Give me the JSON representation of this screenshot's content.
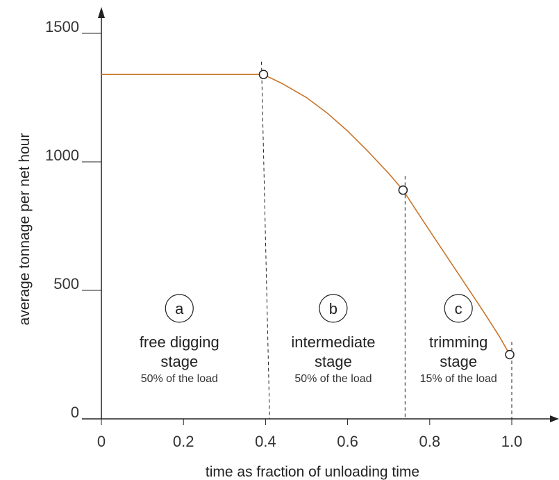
{
  "chart_data": {
    "type": "line",
    "xlabel": "time as fraction of unloading time",
    "ylabel": "average tonnage per net hour",
    "xlim": [
      0,
      1.0
    ],
    "ylim": [
      0,
      1500
    ],
    "x_ticks": [
      "0",
      "0.2",
      "0.4",
      "0.6",
      "0.8",
      "1.0"
    ],
    "y_ticks": [
      "0",
      "500",
      "1000",
      "1500"
    ],
    "grid": false,
    "legend": "none",
    "series": [
      {
        "color": "#c8742a",
        "x": [
          0,
          0.395,
          0.44,
          0.5,
          0.55,
          0.6,
          0.65,
          0.7,
          0.735,
          0.78,
          0.83,
          0.88,
          0.93,
          0.97,
          0.995
        ],
        "y": [
          1340,
          1340,
          1305,
          1250,
          1190,
          1120,
          1040,
          955,
          890,
          780,
          660,
          540,
          420,
          320,
          250
        ]
      }
    ],
    "markers": [
      {
        "x": 0.395,
        "y": 1340
      },
      {
        "x": 0.735,
        "y": 890
      },
      {
        "x": 0.995,
        "y": 250
      }
    ],
    "dividers": [
      {
        "x_top": 0.39,
        "x_bottom": 0.41,
        "y_top": 1390
      },
      {
        "x_top": 0.74,
        "x_bottom": 0.74,
        "y_top": 945
      },
      {
        "x_top": 1.0,
        "x_bottom": 1.0,
        "y_top": 300
      }
    ],
    "stages": [
      {
        "letter": "a",
        "title": "free digging",
        "subtitle": "stage",
        "share": "50% of the load",
        "x_center": 0.19,
        "y_circle": 430
      },
      {
        "letter": "b",
        "title": "intermediate",
        "subtitle": "stage",
        "share": "50% of the load",
        "x_center": 0.565,
        "y_circle": 430
      },
      {
        "letter": "c",
        "title": "trimming",
        "subtitle": "stage",
        "share": "15% of the load",
        "x_center": 0.87,
        "y_circle": 430
      }
    ]
  }
}
